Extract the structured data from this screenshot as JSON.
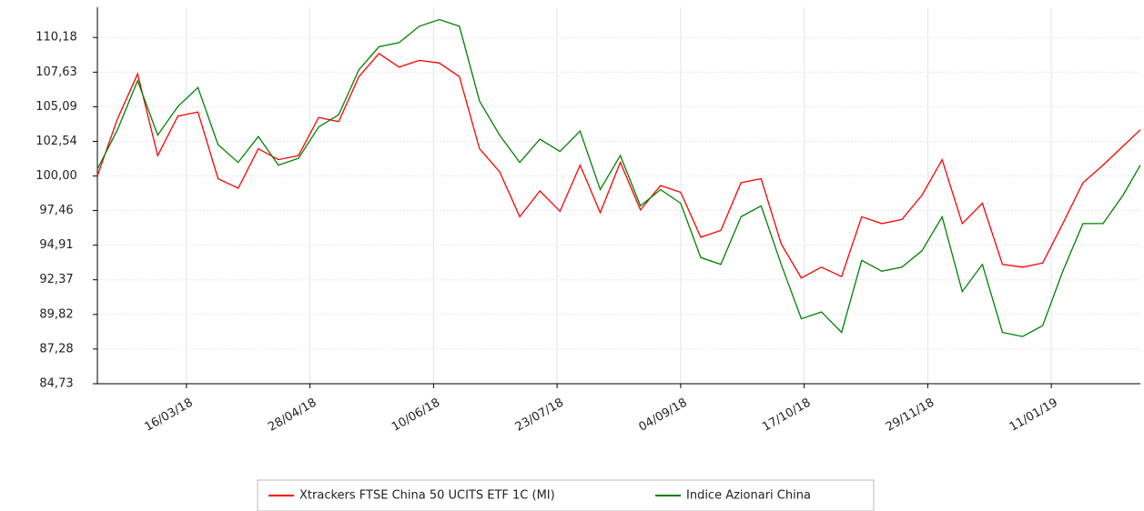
{
  "chart_data": {
    "type": "line",
    "x": [
      "13/02/18",
      "20/02/18",
      "27/02/18",
      "06/03/18",
      "13/03/18",
      "20/03/18",
      "27/03/18",
      "03/04/18",
      "10/04/18",
      "17/04/18",
      "24/04/18",
      "01/05/18",
      "08/05/18",
      "15/05/18",
      "22/05/18",
      "29/05/18",
      "05/06/18",
      "12/06/18",
      "19/06/18",
      "26/06/18",
      "03/07/18",
      "10/07/18",
      "17/07/18",
      "24/07/18",
      "31/07/18",
      "07/08/18",
      "14/08/18",
      "21/08/18",
      "28/08/18",
      "04/09/18",
      "11/09/18",
      "18/09/18",
      "25/09/18",
      "02/10/18",
      "09/10/18",
      "16/10/18",
      "23/10/18",
      "30/10/18",
      "06/11/18",
      "13/11/18",
      "20/11/18",
      "27/11/18",
      "04/12/18",
      "11/12/18",
      "18/12/18",
      "25/12/18",
      "01/01/19",
      "08/01/19",
      "15/01/19",
      "22/01/19",
      "29/01/19",
      "05/02/19",
      "11/02/19"
    ],
    "series": [
      {
        "name": "Xtrackers FTSE China 50 UCITS ETF 1C (MI)",
        "color": "#ff0000",
        "values": [
          100.0,
          104.2,
          107.5,
          101.5,
          104.4,
          104.7,
          99.8,
          99.1,
          102.0,
          101.2,
          101.5,
          104.3,
          104.0,
          107.3,
          109.0,
          108.0,
          108.5,
          108.3,
          107.3,
          102.0,
          100.3,
          97.0,
          98.9,
          97.4,
          100.8,
          97.3,
          101.0,
          97.5,
          99.3,
          98.8,
          95.5,
          96.0,
          99.5,
          99.8,
          95.0,
          92.5,
          93.3,
          92.6,
          97.0,
          96.5,
          96.8,
          98.6,
          101.2,
          96.5,
          98.0,
          93.5,
          93.3,
          93.6,
          96.5,
          99.5,
          100.8,
          102.2,
          103.4
        ]
      },
      {
        "name": "Indice Azionari China",
        "color": "#008000",
        "values": [
          100.5,
          103.4,
          107.0,
          103.0,
          105.1,
          106.5,
          102.3,
          101.0,
          102.9,
          100.8,
          101.3,
          103.6,
          104.5,
          107.8,
          109.5,
          109.8,
          111.0,
          111.5,
          111.0,
          105.5,
          103.0,
          101.0,
          102.7,
          101.8,
          103.3,
          99.0,
          101.5,
          97.8,
          99.0,
          98.0,
          94.0,
          93.5,
          97.0,
          97.8,
          93.5,
          89.5,
          90.0,
          88.5,
          93.8,
          93.0,
          93.3,
          94.5,
          97.0,
          91.5,
          93.5,
          88.5,
          88.2,
          89.0,
          93.0,
          96.5,
          96.5,
          98.6,
          100.8
        ]
      }
    ],
    "xlim": [
      "13/02/18",
      "11/02/19"
    ],
    "xticks": [
      "16/03/18",
      "28/04/18",
      "10/06/18",
      "23/07/18",
      "04/09/18",
      "17/10/18",
      "29/11/18",
      "11/01/19"
    ],
    "ylim": [
      84.73,
      112.4
    ],
    "yticks": [
      {
        "value": 84.73,
        "label": "84,73"
      },
      {
        "value": 87.28,
        "label": "87,28"
      },
      {
        "value": 89.82,
        "label": "89,82"
      },
      {
        "value": 92.37,
        "label": "92,37"
      },
      {
        "value": 94.91,
        "label": "94,91"
      },
      {
        "value": 97.46,
        "label": "97,46"
      },
      {
        "value": 100.0,
        "label": "100,00"
      },
      {
        "value": 102.54,
        "label": "102,54"
      },
      {
        "value": 105.09,
        "label": "105,09"
      },
      {
        "value": 107.63,
        "label": "107,63"
      },
      {
        "value": 110.18,
        "label": "110,18"
      }
    ],
    "grid": true
  }
}
